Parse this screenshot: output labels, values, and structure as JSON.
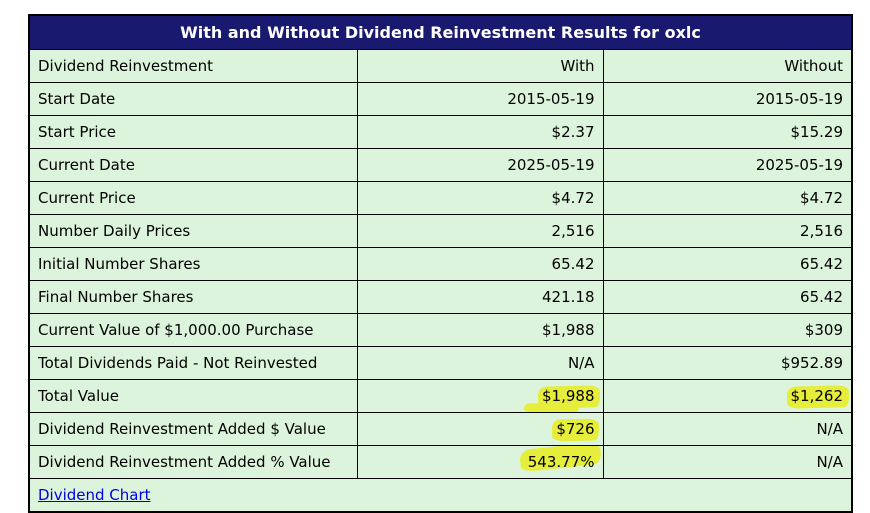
{
  "title": "With and Without Dividend Reinvestment Results for oxlc",
  "header_row": {
    "label": "Dividend Reinvestment",
    "with": "With",
    "without": "Without"
  },
  "rows": [
    {
      "label": "Start Date",
      "with": "2015-05-19",
      "without": "2015-05-19"
    },
    {
      "label": "Start Price",
      "with": "$2.37",
      "without": "$15.29"
    },
    {
      "label": "Current Date",
      "with": "2025-05-19",
      "without": "2025-05-19"
    },
    {
      "label": "Current Price",
      "with": "$4.72",
      "without": "$4.72"
    },
    {
      "label": "Number Daily Prices",
      "with": "2,516",
      "without": "2,516"
    },
    {
      "label": "Initial Number Shares",
      "with": "65.42",
      "without": "65.42"
    },
    {
      "label": "Final Number Shares",
      "with": "421.18",
      "without": "65.42"
    },
    {
      "label": "Current Value of $1,000.00 Purchase",
      "with": "$1,988",
      "without": "$309"
    },
    {
      "label": "Total Dividends Paid - Not Reinvested",
      "with": "N/A",
      "without": "$952.89"
    },
    {
      "label": "Total Value",
      "with": "$1,988",
      "without": "$1,262"
    },
    {
      "label": "Dividend Reinvestment Added $ Value",
      "with": "$726",
      "without": "N/A"
    },
    {
      "label": "Dividend Reinvestment Added % Value",
      "with": "543.77%",
      "without": "N/A"
    }
  ],
  "link": {
    "label": "Dividend Chart"
  },
  "colors": {
    "title_background": "#191970",
    "title_text": "#ffffff",
    "cell_background": "#dcf4dc",
    "highlight": "#e6ee3b",
    "link": "#0000e0",
    "border": "#000000"
  }
}
